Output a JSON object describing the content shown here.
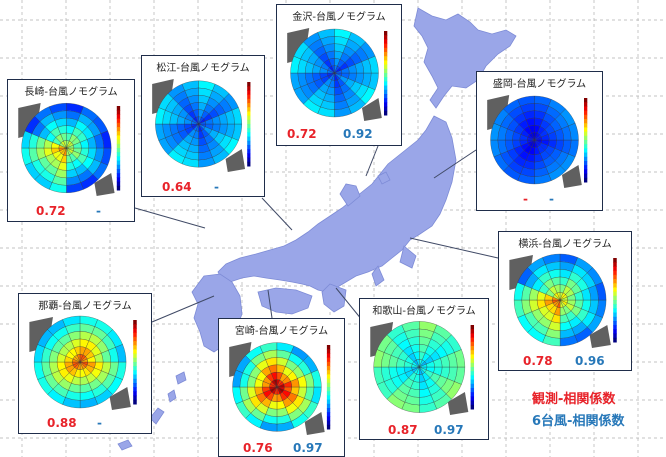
{
  "colors": {
    "land": "#9aa6e8",
    "land_edge": "#7d8bd6",
    "grid": "#b0b0b0",
    "frame": "#1f2d4a",
    "observed": "#e8232a",
    "typhoon6": "#2778b9",
    "leader": "#404a66"
  },
  "panels": [
    {
      "id": "nagasaki",
      "title": "長崎-台風ノモグラム",
      "observed": "0.72",
      "typhoon6": "-",
      "center_level": 0.55,
      "gradient": "mixed"
    },
    {
      "id": "matsue",
      "title": "松江-台風ノモグラム",
      "observed": "0.64",
      "typhoon6": "-",
      "center_level": 0.2,
      "gradient": "cool"
    },
    {
      "id": "kanazawa",
      "title": "金沢-台風ノモグラム",
      "observed": "0.72",
      "typhoon6": "0.92",
      "center_level": 0.2,
      "gradient": "cool"
    },
    {
      "id": "morioka",
      "title": "盛岡-台風ノモグラム",
      "observed": "-",
      "typhoon6": "-",
      "center_level": 0.1,
      "gradient": "deep"
    },
    {
      "id": "yokohama",
      "title": "横浜-台風ノモグラム",
      "observed": "0.78",
      "typhoon6": "0.96",
      "center_level": 0.6,
      "gradient": "mixed"
    },
    {
      "id": "naha",
      "title": "那覇-台風ノモグラム",
      "observed": "0.88",
      "typhoon6": "-",
      "center_level": 0.75,
      "gradient": "warm"
    },
    {
      "id": "miyazaki",
      "title": "宮崎-台風ノモグラム",
      "observed": "0.76",
      "typhoon6": "0.97",
      "center_level": 0.9,
      "gradient": "hot"
    },
    {
      "id": "wakayama",
      "title": "和歌山-台風ノモグラム",
      "observed": "0.87",
      "typhoon6": "0.97",
      "center_level": 0.35,
      "gradient": "cool"
    }
  ],
  "legend": {
    "observed_label": "観測-相関係数",
    "typhoon6_label": "6台風-相関係数"
  }
}
